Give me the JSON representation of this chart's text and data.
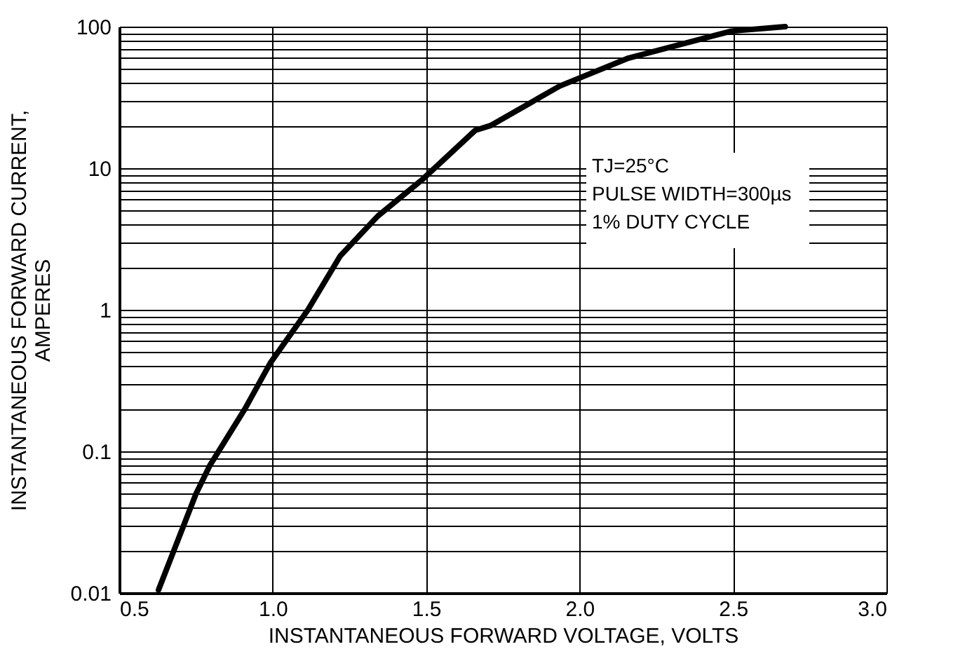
{
  "chart_data": {
    "type": "line",
    "xlabel": "INSTANTANEOUS FORWARD VOLTAGE, VOLTS",
    "ylabel": "INSTANTANEOUS FORWARD CURRENT,\nAMPERES",
    "x": [
      0.628,
      0.75,
      0.796,
      0.91,
      0.992,
      1.115,
      1.22,
      1.343,
      1.49,
      1.66,
      1.71,
      1.935,
      2.16,
      2.495,
      2.67
    ],
    "series": [
      {
        "color": "#000000",
        "values": [
          0.0105,
          0.05,
          0.08,
          0.2,
          0.42,
          1,
          2.4,
          4.6,
          8.4,
          18.5,
          20,
          38,
          60,
          93,
          100
        ]
      }
    ],
    "log": "y",
    "xlim": [
      0.5,
      3.0
    ],
    "xticks": [
      0.5,
      {
        "value": 1,
        "label": "1.0"
      },
      1.5,
      {
        "value": 2,
        "label": "2.0"
      },
      2.5,
      {
        "value": 3,
        "label": "3.0"
      }
    ],
    "ylim": [
      0.01,
      100
    ],
    "yticks": [
      0.01,
      {
        "value": 0.02,
        "label": null
      },
      {
        "value": 0.03,
        "label": null
      },
      {
        "value": 0.04,
        "label": null
      },
      {
        "value": 0.05,
        "label": null
      },
      {
        "value": 0.06,
        "label": null
      },
      {
        "value": 0.07,
        "label": null
      },
      {
        "value": 0.08,
        "label": null
      },
      {
        "value": 0.09,
        "label": null
      },
      0.1,
      {
        "value": 0.2,
        "label": null
      },
      {
        "value": 0.3,
        "label": null
      },
      {
        "value": 0.4,
        "label": null
      },
      {
        "value": 0.5,
        "label": null
      },
      {
        "value": 0.6,
        "label": null
      },
      {
        "value": 0.7,
        "label": null
      },
      {
        "value": 0.8,
        "label": null
      },
      {
        "value": 0.9,
        "label": null
      },
      1,
      {
        "value": 2,
        "label": null
      },
      {
        "value": 3,
        "label": null
      },
      {
        "value": 4,
        "label": null
      },
      {
        "value": 5,
        "label": null
      },
      {
        "value": 6,
        "label": null
      },
      {
        "value": 7,
        "label": null
      },
      {
        "value": 8,
        "label": null
      },
      {
        "value": 9,
        "label": null
      },
      10,
      {
        "value": 20,
        "label": null
      },
      {
        "value": 30,
        "label": null
      },
      {
        "value": 40,
        "label": null
      },
      {
        "value": 50,
        "label": null
      },
      {
        "value": 60,
        "label": null
      },
      {
        "value": 70,
        "label": null
      },
      {
        "value": 80,
        "label": null
      },
      {
        "value": 90,
        "label": null
      },
      100
    ],
    "grid": true,
    "marker": "none",
    "line_style": "solid",
    "annotations": [
      "TJ=25°C",
      "PULSE WIDTH=300µs",
      "1% DUTY CYCLE"
    ]
  }
}
